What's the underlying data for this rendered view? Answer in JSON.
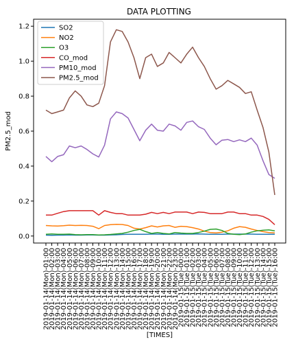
{
  "chart_data": {
    "type": "line",
    "title": "DATA PLOTTING",
    "xlabel": "[TIMES]",
    "ylabel": "PM2.5_mod",
    "ylim": [
      -0.04,
      1.24
    ],
    "yticks": [
      0.0,
      0.2,
      0.4,
      0.6,
      0.8,
      1.0,
      1.2
    ],
    "ytick_labels": [
      "0.0",
      "0.2",
      "0.4",
      "0.6",
      "0.8",
      "1.0",
      "1.2"
    ],
    "grid": false,
    "legend_position": "top-left",
    "x": [
      "2019-01-14(Mon)-01:00",
      "2019-01-14(Mon)-02:00",
      "2019-01-14(Mon)-03:00",
      "2019-01-14(Mon)-04:00",
      "2019-01-14(Mon)-05:00",
      "2019-01-14(Mon)-06:00",
      "2019-01-14(Mon)-07:00",
      "2019-01-14(Mon)-08:00",
      "2019-01-14(Mon)-09:00",
      "2019-01-14(Mon)-10:00",
      "2019-01-14(Mon)-11:00",
      "2019-01-14(Mon)-12:00",
      "2019-01-14(Mon)-13:00",
      "2019-01-14(Mon)-14:00",
      "2019-01-14(Mon)-15:00",
      "2019-01-14(Mon)-16:00",
      "2019-01-14(Mon)-17:00",
      "2019-01-14(Mon)-18:00",
      "2019-01-14(Mon)-19:00",
      "2019-01-14(Mon)-20:00",
      "2019-01-14(Mon)-21:00",
      "2019-01-14(Mon)-22:00",
      "2019-01-14(Mon)-23:00",
      "2019-01-15(Tue)-00:00",
      "2019-01-15(Tue)-01:00",
      "2019-01-15(Tue)-02:00",
      "2019-01-15(Tue)-03:00",
      "2019-01-15(Tue)-04:00",
      "2019-01-15(Tue)-05:00",
      "2019-01-15(Tue)-06:00",
      "2019-01-15(Tue)-07:00",
      "2019-01-15(Tue)-08:00",
      "2019-01-15(Tue)-09:00",
      "2019-01-15(Tue)-10:00",
      "2019-01-15(Tue)-11:00",
      "2019-01-15(Tue)-12:00",
      "2019-01-15(Tue)-13:00",
      "2019-01-15(Tue)-14:00",
      "2019-01-15(Tue)-15:00",
      "2019-01-15(Tue)-16:00"
    ],
    "series": [
      {
        "name": "SO2",
        "color": "#1f77b4",
        "values": [
          0.005,
          0.004,
          0.005,
          0.005,
          0.006,
          0.005,
          0.005,
          0.006,
          0.006,
          0.005,
          0.005,
          0.006,
          0.007,
          0.009,
          0.01,
          0.01,
          0.01,
          0.01,
          0.011,
          0.011,
          0.01,
          0.01,
          0.011,
          0.011,
          0.011,
          0.011,
          0.012,
          0.011,
          0.01,
          0.01,
          0.01,
          0.011,
          0.011,
          0.011,
          0.011,
          0.011,
          0.01,
          0.01,
          0.01,
          0.01
        ]
      },
      {
        "name": "NO2",
        "color": "#ff7f0e",
        "values": [
          0.06,
          0.058,
          0.057,
          0.059,
          0.062,
          0.06,
          0.061,
          0.06,
          0.056,
          0.042,
          0.06,
          0.065,
          0.067,
          0.066,
          0.06,
          0.045,
          0.04,
          0.048,
          0.058,
          0.052,
          0.058,
          0.06,
          0.05,
          0.056,
          0.054,
          0.048,
          0.04,
          0.028,
          0.02,
          0.018,
          0.022,
          0.03,
          0.045,
          0.054,
          0.05,
          0.04,
          0.032,
          0.025,
          0.02,
          0.018
        ]
      },
      {
        "name": "O3",
        "color": "#2ca02c",
        "values": [
          0.01,
          0.012,
          0.01,
          0.01,
          0.011,
          0.008,
          0.007,
          0.008,
          0.008,
          0.006,
          0.007,
          0.009,
          0.012,
          0.015,
          0.022,
          0.032,
          0.038,
          0.025,
          0.015,
          0.02,
          0.015,
          0.012,
          0.02,
          0.017,
          0.015,
          0.015,
          0.02,
          0.028,
          0.038,
          0.04,
          0.032,
          0.015,
          0.01,
          0.008,
          0.012,
          0.022,
          0.03,
          0.033,
          0.035,
          0.03
        ]
      },
      {
        "name": "CO_mod",
        "color": "#d62728",
        "values": [
          0.12,
          0.12,
          0.13,
          0.14,
          0.145,
          0.145,
          0.145,
          0.145,
          0.145,
          0.12,
          0.145,
          0.135,
          0.128,
          0.128,
          0.12,
          0.12,
          0.12,
          0.125,
          0.135,
          0.128,
          0.135,
          0.128,
          0.137,
          0.137,
          0.137,
          0.128,
          0.137,
          0.135,
          0.128,
          0.128,
          0.128,
          0.137,
          0.137,
          0.128,
          0.128,
          0.12,
          0.12,
          0.112,
          0.095,
          0.065
        ]
      },
      {
        "name": "PM10_mod",
        "color": "#9467bd",
        "values": [
          0.455,
          0.425,
          0.455,
          0.465,
          0.515,
          0.505,
          0.515,
          0.495,
          0.47,
          0.452,
          0.52,
          0.67,
          0.71,
          0.7,
          0.675,
          0.61,
          0.545,
          0.605,
          0.64,
          0.605,
          0.6,
          0.64,
          0.63,
          0.605,
          0.65,
          0.658,
          0.625,
          0.61,
          0.56,
          0.522,
          0.548,
          0.552,
          0.54,
          0.55,
          0.54,
          0.56,
          0.52,
          0.43,
          0.352,
          0.33
        ]
      },
      {
        "name": "PM2.5_mod",
        "color": "#8c564b",
        "values": [
          0.72,
          0.7,
          0.71,
          0.72,
          0.79,
          0.83,
          0.8,
          0.75,
          0.74,
          0.76,
          0.86,
          1.11,
          1.18,
          1.17,
          1.11,
          1.02,
          0.9,
          1.02,
          1.04,
          0.97,
          0.99,
          1.05,
          1.02,
          0.99,
          1.04,
          1.08,
          1.02,
          0.97,
          0.9,
          0.84,
          0.86,
          0.89,
          0.87,
          0.85,
          0.815,
          0.825,
          0.72,
          0.62,
          0.48,
          0.235
        ]
      }
    ]
  }
}
